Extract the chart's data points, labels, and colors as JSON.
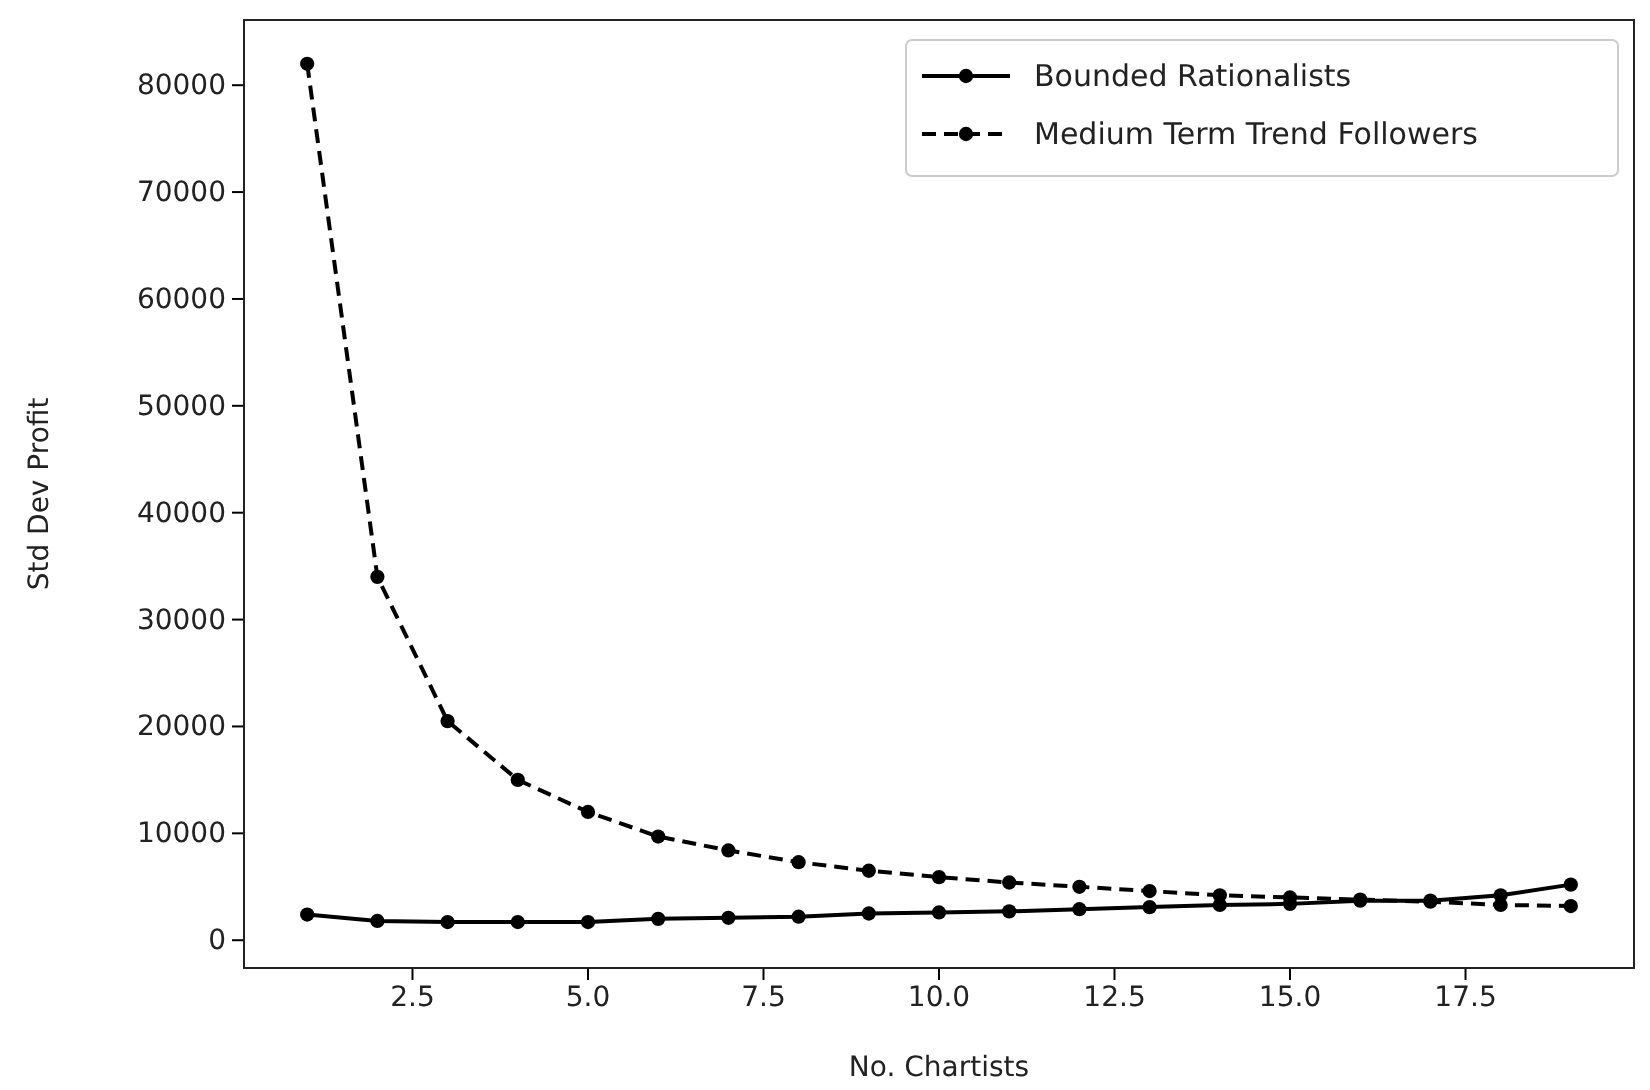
{
  "chart_data": {
    "type": "line",
    "xlabel": "No. Chartists",
    "ylabel": "Std Dev Profit",
    "x": [
      1,
      2,
      3,
      4,
      5,
      6,
      7,
      8,
      9,
      10,
      11,
      12,
      13,
      14,
      15,
      16,
      17,
      18,
      19
    ],
    "series": [
      {
        "name": "Bounded Rationalists",
        "color": "#000000",
        "line_style": "solid",
        "values": [
          2400,
          1800,
          1700,
          1700,
          1700,
          2000,
          2100,
          2200,
          2500,
          2600,
          2700,
          2900,
          3100,
          3300,
          3400,
          3700,
          3700,
          4200,
          5200
        ]
      },
      {
        "name": "Medium Term Trend Followers",
        "color": "#000000",
        "line_style": "dashed",
        "values": [
          82000,
          34000,
          20500,
          15000,
          12000,
          9700,
          8400,
          7300,
          6500,
          5900,
          5400,
          5000,
          4600,
          4200,
          4000,
          3800,
          3600,
          3300,
          3200
        ]
      }
    ],
    "marker": "circle",
    "legend": "top right",
    "grid": false,
    "xlim": [
      0.1,
      19.9
    ],
    "xticks": [
      {
        "value": 2.5,
        "label": "2.5"
      },
      {
        "value": 5,
        "label": "5.0"
      },
      {
        "value": 7.5,
        "label": "7.5"
      },
      {
        "value": 10,
        "label": "10.0"
      },
      {
        "value": 12.5,
        "label": "12.5"
      },
      {
        "value": 15,
        "label": "15.0"
      },
      {
        "value": 17.5,
        "label": "17.5"
      }
    ],
    "ylim": [
      -2600,
      86100
    ],
    "yticks": [
      0,
      10000,
      20000,
      30000,
      40000,
      50000,
      60000,
      70000,
      80000
    ]
  }
}
